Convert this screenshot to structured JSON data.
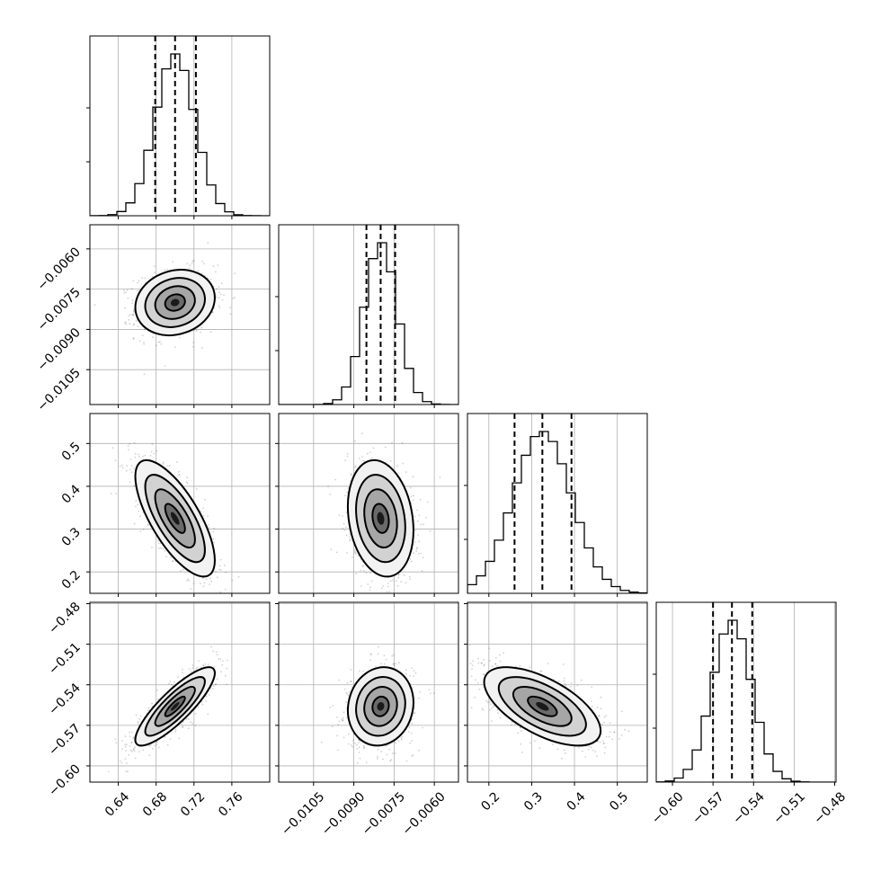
{
  "chart_data": {
    "type": "corner",
    "title": "",
    "parameters": [
      {
        "mean": 0.7,
        "std": 0.021,
        "quantiles": [
          0.679,
          0.7,
          0.722
        ],
        "range": [
          0.61,
          0.8
        ],
        "ticks": [
          0.64,
          0.68,
          0.72,
          0.76
        ],
        "tick_labels": [
          "0.64",
          "0.68",
          "0.72",
          "0.76"
        ]
      },
      {
        "mean": -0.008,
        "std": 0.00061,
        "quantiles": [
          -0.00853,
          -0.008,
          -0.00746
        ],
        "range": [
          -0.0118,
          -0.0051
        ],
        "ticks": [
          -0.0105,
          -0.009,
          -0.0075,
          -0.006
        ],
        "tick_labels": [
          "−0.0105",
          "−0.0090",
          "−0.0075",
          "−0.0060"
        ]
      },
      {
        "mean": 0.325,
        "std": 0.068,
        "quantiles": [
          0.26,
          0.325,
          0.393
        ],
        "range": [
          0.15,
          0.57
        ],
        "ticks": [
          0.2,
          0.3,
          0.4,
          0.5
        ],
        "tick_labels": [
          "0.2",
          "0.3",
          "0.4",
          "0.5"
        ]
      },
      {
        "mean": -0.556,
        "std": 0.0145,
        "quantiles": [
          -0.57,
          -0.556,
          -0.541
        ],
        "range": [
          -0.612,
          -0.479
        ],
        "ticks": [
          -0.6,
          -0.57,
          -0.54,
          -0.51,
          -0.48
        ],
        "tick_labels": [
          "−0.60",
          "−0.57",
          "−0.54",
          "−0.51",
          "−0.48"
        ]
      }
    ],
    "correlations": [
      {
        "pair": [
          0,
          1
        ],
        "rho": 0.15
      },
      {
        "pair": [
          0,
          2
        ],
        "rho": -0.72
      },
      {
        "pair": [
          1,
          2
        ],
        "rho": -0.2
      },
      {
        "pair": [
          0,
          3
        ],
        "rho": 0.85
      },
      {
        "pair": [
          1,
          3
        ],
        "rho": 0.1
      },
      {
        "pair": [
          2,
          3
        ],
        "rho": -0.62
      }
    ],
    "histogram_bins": 20,
    "contour_levels": [
      "0.5σ",
      "1σ",
      "1.5σ",
      "2σ"
    ],
    "quantile_levels": [
      0.16,
      0.5,
      0.84
    ],
    "grid": true,
    "colors": {
      "line": "#000000",
      "grid": "#b0b0b0",
      "points": "#000000",
      "background": "#ffffff"
    }
  }
}
